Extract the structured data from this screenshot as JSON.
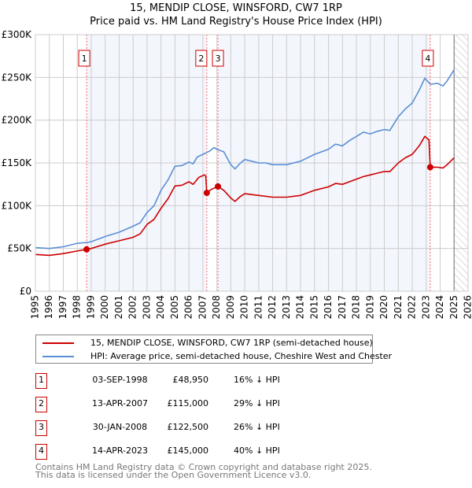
{
  "title": [
    "15, MENDIP CLOSE, WINSFORD, CW7 1RP",
    "Price paid vs. HM Land Registry's House Price Index (HPI)"
  ],
  "colors": {
    "property": "#cc0000",
    "hpi": "#5b8fd4",
    "shade": "#f3f6fd",
    "grid": "#cccccc",
    "marker_line": "#ff6666"
  },
  "chart_data": {
    "type": "line",
    "title": "15, MENDIP CLOSE, WINSFORD, CW7 1RP — Price paid vs. HM Land Registry's House Price Index (HPI)",
    "xlim": [
      1995,
      2026
    ],
    "ylim": [
      0,
      300000
    ],
    "grid": true,
    "y_ticks": [
      {
        "v": 0,
        "label": "£0"
      },
      {
        "v": 50000,
        "label": "£50K"
      },
      {
        "v": 100000,
        "label": "£100K"
      },
      {
        "v": 150000,
        "label": "£150K"
      },
      {
        "v": 200000,
        "label": "£200K"
      },
      {
        "v": 250000,
        "label": "£250K"
      },
      {
        "v": 300000,
        "label": "£300K"
      }
    ],
    "x_ticks": [
      1995,
      1996,
      1997,
      1998,
      1999,
      2000,
      2001,
      2002,
      2003,
      2004,
      2005,
      2006,
      2007,
      2008,
      2009,
      2010,
      2011,
      2012,
      2013,
      2014,
      2015,
      2016,
      2017,
      2018,
      2019,
      2020,
      2021,
      2022,
      2023,
      2024,
      2025,
      2026
    ],
    "forecast_start": 2025.0,
    "series": [
      {
        "name": "15, MENDIP CLOSE, WINSFORD, CW7 1RP (semi-detached house)",
        "color": "#cc0000",
        "points": [
          [
            1995,
            43
          ],
          [
            1996,
            42
          ],
          [
            1997,
            44
          ],
          [
            1998,
            47
          ],
          [
            1998.67,
            48.95
          ],
          [
            1999,
            50
          ],
          [
            2000,
            55
          ],
          [
            2001,
            59
          ],
          [
            2002,
            63
          ],
          [
            2002.5,
            67
          ],
          [
            2003,
            78
          ],
          [
            2003.5,
            84
          ],
          [
            2004,
            97
          ],
          [
            2004.5,
            108
          ],
          [
            2005,
            123
          ],
          [
            2005.5,
            124
          ],
          [
            2006,
            128
          ],
          [
            2006.3,
            125
          ],
          [
            2006.7,
            133
          ],
          [
            2007.1,
            136
          ],
          [
            2007.2,
            135
          ],
          [
            2007.28,
            115
          ],
          [
            2007.6,
            119
          ],
          [
            2008.08,
            122.5
          ],
          [
            2008.5,
            118
          ],
          [
            2009,
            109
          ],
          [
            2009.3,
            105
          ],
          [
            2009.7,
            111
          ],
          [
            2010,
            114
          ],
          [
            2010.5,
            113
          ],
          [
            2011,
            112
          ],
          [
            2012,
            110
          ],
          [
            2013,
            110
          ],
          [
            2014,
            112
          ],
          [
            2015,
            118
          ],
          [
            2016,
            122
          ],
          [
            2016.5,
            126
          ],
          [
            2017,
            125
          ],
          [
            2017.5,
            128
          ],
          [
            2018,
            131
          ],
          [
            2018.5,
            134
          ],
          [
            2019,
            136
          ],
          [
            2019.5,
            138
          ],
          [
            2020,
            140
          ],
          [
            2020.4,
            140
          ],
          [
            2021,
            150
          ],
          [
            2021.5,
            156
          ],
          [
            2022,
            160
          ],
          [
            2022.5,
            170
          ],
          [
            2022.9,
            181
          ],
          [
            2023.2,
            177
          ],
          [
            2023.29,
            145
          ],
          [
            2023.8,
            145
          ],
          [
            2024.2,
            144
          ],
          [
            2024.5,
            148
          ],
          [
            2025,
            156
          ]
        ]
      },
      {
        "name": "HPI: Average price, semi-detached house, Cheshire West and Chester",
        "color": "#5b8fd4",
        "points": [
          [
            1995,
            51
          ],
          [
            1996,
            50
          ],
          [
            1997,
            52
          ],
          [
            1998,
            56
          ],
          [
            1998.7,
            57
          ],
          [
            1999,
            58
          ],
          [
            2000,
            64
          ],
          [
            2001,
            69
          ],
          [
            2002,
            76
          ],
          [
            2002.5,
            80
          ],
          [
            2003,
            92
          ],
          [
            2003.5,
            100
          ],
          [
            2004,
            118
          ],
          [
            2004.5,
            130
          ],
          [
            2005,
            146
          ],
          [
            2005.5,
            147
          ],
          [
            2006,
            151
          ],
          [
            2006.3,
            149
          ],
          [
            2006.6,
            157
          ],
          [
            2007,
            160
          ],
          [
            2007.5,
            164
          ],
          [
            2007.8,
            168
          ],
          [
            2008,
            166
          ],
          [
            2008.5,
            163
          ],
          [
            2009,
            148
          ],
          [
            2009.3,
            143
          ],
          [
            2009.7,
            150
          ],
          [
            2010,
            154
          ],
          [
            2010.5,
            152
          ],
          [
            2011,
            150
          ],
          [
            2011.5,
            150
          ],
          [
            2012,
            148
          ],
          [
            2013,
            148
          ],
          [
            2014,
            152
          ],
          [
            2015,
            160
          ],
          [
            2016,
            166
          ],
          [
            2016.5,
            172
          ],
          [
            2017,
            170
          ],
          [
            2017.5,
            176
          ],
          [
            2018,
            181
          ],
          [
            2018.5,
            186
          ],
          [
            2019,
            184
          ],
          [
            2019.5,
            187
          ],
          [
            2020,
            189
          ],
          [
            2020.4,
            188
          ],
          [
            2021,
            204
          ],
          [
            2021.5,
            213
          ],
          [
            2022,
            220
          ],
          [
            2022.5,
            235
          ],
          [
            2022.9,
            249
          ],
          [
            2023.3,
            242
          ],
          [
            2023.8,
            243
          ],
          [
            2024.2,
            240
          ],
          [
            2024.5,
            246
          ],
          [
            2025,
            259
          ]
        ]
      }
    ],
    "sales": [
      {
        "n": "1",
        "x": 1998.67,
        "price": 48950
      },
      {
        "n": "2",
        "x": 2007.28,
        "price": 115000
      },
      {
        "n": "3",
        "x": 2008.08,
        "price": 122500
      },
      {
        "n": "4",
        "x": 2023.29,
        "price": 145000
      }
    ]
  },
  "legend": [
    "15, MENDIP CLOSE, WINSFORD, CW7 1RP (semi-detached house)",
    "HPI: Average price, semi-detached house, Cheshire West and Chester"
  ],
  "table": [
    {
      "n": "1",
      "date": "03-SEP-1998",
      "price": "£48,950",
      "hpi": "16% ↓ HPI"
    },
    {
      "n": "2",
      "date": "13-APR-2007",
      "price": "£115,000",
      "hpi": "29% ↓ HPI"
    },
    {
      "n": "3",
      "date": "30-JAN-2008",
      "price": "£122,500",
      "hpi": "26% ↓ HPI"
    },
    {
      "n": "4",
      "date": "14-APR-2023",
      "price": "£145,000",
      "hpi": "40% ↓ HPI"
    }
  ],
  "footer": [
    "Contains HM Land Registry data © Crown copyright and database right 2025.",
    "This data is licensed under the Open Government Licence v3.0."
  ]
}
